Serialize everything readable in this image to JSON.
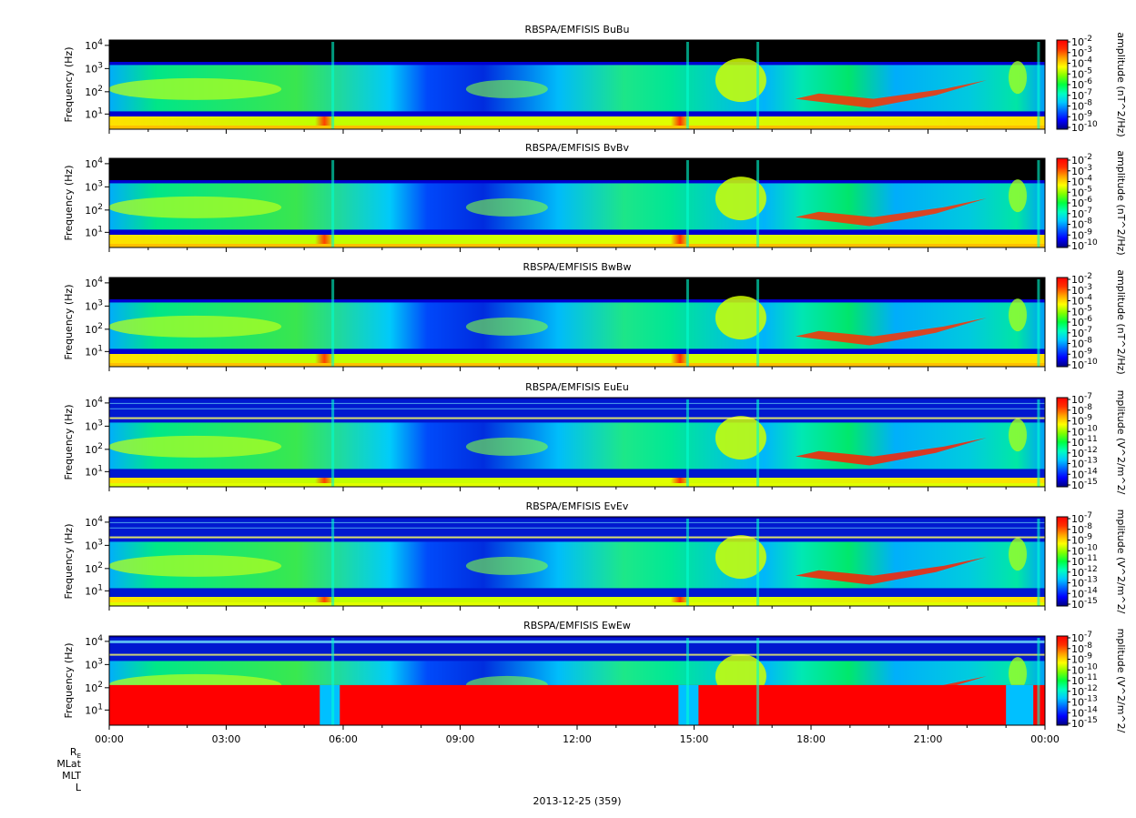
{
  "figure": {
    "date_label": "2013-12-25 (359)",
    "ephemeris_labels": [
      "R_E",
      "MLat",
      "MLT",
      "L"
    ]
  },
  "colors": {
    "scale": [
      "#000080",
      "#0000ff",
      "#0060ff",
      "#00c8ff",
      "#00ffc0",
      "#00ff40",
      "#80ff00",
      "#ffff00",
      "#ffa000",
      "#ff3000",
      "#ff0000"
    ],
    "background_empty": "#000000"
  },
  "chart_data": [
    {
      "type": "heatmap",
      "title": "RBSPA/EMFISIS  BuBu",
      "ylabel": "Frequency (Hz)",
      "yscale": "log",
      "y_ticks": [
        "10",
        "10",
        "10",
        "10"
      ],
      "y_tick_exponents": [
        "1",
        "2",
        "3",
        "4"
      ],
      "x_ticks": [
        "00:00",
        "03:00",
        "06:00",
        "09:00",
        "12:00",
        "15:00",
        "18:00",
        "21:00",
        "00:00"
      ],
      "colorbar_label": "amplitude (nT^2/Hz)",
      "colorbar_ticks": [
        "10",
        "10",
        "10",
        "10",
        "10",
        "10",
        "10",
        "10",
        "10"
      ],
      "colorbar_tick_exponents": [
        "-2",
        "-3",
        "-4",
        "-5",
        "-6",
        "-7",
        "-8",
        "-9",
        "-10"
      ],
      "kind": "B"
    },
    {
      "type": "heatmap",
      "title": "RBSPA/EMFISIS  BvBv",
      "ylabel": "Frequency (Hz)",
      "yscale": "log",
      "y_ticks": [
        "10",
        "10",
        "10",
        "10"
      ],
      "y_tick_exponents": [
        "1",
        "2",
        "3",
        "4"
      ],
      "x_ticks": [],
      "colorbar_label": "amplitude (nT^2/Hz)",
      "colorbar_ticks": [
        "10",
        "10",
        "10",
        "10",
        "10",
        "10",
        "10",
        "10",
        "10"
      ],
      "colorbar_tick_exponents": [
        "-2",
        "-3",
        "-4",
        "-5",
        "-6",
        "-7",
        "-8",
        "-9",
        "-10"
      ],
      "kind": "B"
    },
    {
      "type": "heatmap",
      "title": "RBSPA/EMFISIS  BwBw",
      "ylabel": "Frequency (Hz)",
      "yscale": "log",
      "y_ticks": [
        "10",
        "10",
        "10",
        "10"
      ],
      "y_tick_exponents": [
        "1",
        "2",
        "3",
        "4"
      ],
      "x_ticks": [],
      "colorbar_label": "amplitude (nT^2/Hz)",
      "colorbar_ticks": [
        "10",
        "10",
        "10",
        "10",
        "10",
        "10",
        "10",
        "10",
        "10"
      ],
      "colorbar_tick_exponents": [
        "-2",
        "-3",
        "-4",
        "-5",
        "-6",
        "-7",
        "-8",
        "-9",
        "-10"
      ],
      "kind": "B"
    },
    {
      "type": "heatmap",
      "title": "RBSPA/EMFISIS  EuEu",
      "ylabel": "Frequency (Hz)",
      "yscale": "log",
      "y_ticks": [
        "10",
        "10",
        "10",
        "10"
      ],
      "y_tick_exponents": [
        "1",
        "2",
        "3",
        "4"
      ],
      "x_ticks": [],
      "colorbar_label": "mplitude (V^2/m^2/",
      "colorbar_ticks": [
        "10",
        "10",
        "10",
        "10",
        "10",
        "10",
        "10",
        "10",
        "10"
      ],
      "colorbar_tick_exponents": [
        "-7",
        "-8",
        "-9",
        "-10",
        "-11",
        "-12",
        "-13",
        "-14",
        "-15"
      ],
      "kind": "E"
    },
    {
      "type": "heatmap",
      "title": "RBSPA/EMFISIS  EvEv",
      "ylabel": "Frequency (Hz)",
      "yscale": "log",
      "y_ticks": [
        "10",
        "10",
        "10",
        "10"
      ],
      "y_tick_exponents": [
        "1",
        "2",
        "3",
        "4"
      ],
      "x_ticks": [],
      "colorbar_label": "mplitude (V^2/m^2/",
      "colorbar_ticks": [
        "10",
        "10",
        "10",
        "10",
        "10",
        "10",
        "10",
        "10",
        "10"
      ],
      "colorbar_tick_exponents": [
        "-7",
        "-8",
        "-9",
        "-10",
        "-11",
        "-12",
        "-13",
        "-14",
        "-15"
      ],
      "kind": "E"
    },
    {
      "type": "heatmap",
      "title": "RBSPA/EMFISIS  EwEw",
      "ylabel": "Frequency (Hz)",
      "yscale": "log",
      "y_ticks": [
        "10",
        "10",
        "10",
        "10"
      ],
      "y_tick_exponents": [
        "1",
        "2",
        "3",
        "4"
      ],
      "x_ticks": [
        "00:00",
        "03:00",
        "06:00",
        "09:00",
        "12:00",
        "15:00",
        "18:00",
        "21:00",
        "00:00"
      ],
      "colorbar_label": "mplitude (V^2/m^2/",
      "colorbar_ticks": [
        "10",
        "10",
        "10",
        "10",
        "10",
        "10",
        "10",
        "10",
        "10"
      ],
      "colorbar_tick_exponents": [
        "-7",
        "-8",
        "-9",
        "-10",
        "-11",
        "-12",
        "-13",
        "-14",
        "-15"
      ],
      "kind": "Ew"
    }
  ]
}
